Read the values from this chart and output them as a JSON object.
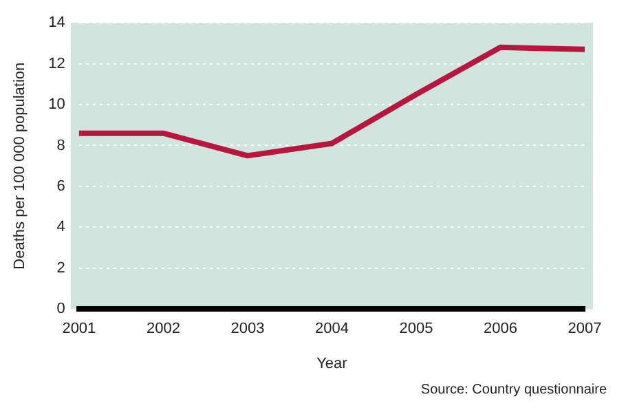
{
  "chart_data": {
    "type": "line",
    "xlabel": "Year",
    "ylabel": "Deaths per 100 000 population",
    "categories": [
      "2001",
      "2002",
      "2003",
      "2004",
      "2005",
      "2006",
      "2007"
    ],
    "series": [
      {
        "color": "#b5173f",
        "values": [
          8.6,
          8.6,
          7.5,
          8.1,
          10.5,
          12.8,
          12.7
        ]
      }
    ],
    "ylim": [
      0,
      14
    ],
    "yticks": [
      0,
      2,
      4,
      6,
      8,
      10,
      12,
      14
    ],
    "grid": "y",
    "legend": false,
    "marker": "none",
    "line_style": "solid",
    "annotations": [
      "Source: Country questionnaire"
    ]
  }
}
